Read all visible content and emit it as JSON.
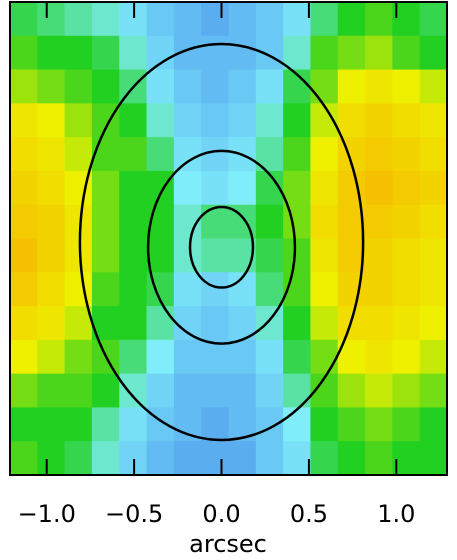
{
  "chart_data": {
    "type": "heatmap",
    "xlabel": "arcsec",
    "xlim": [
      -1.21,
      1.29
    ],
    "ylim": [
      -1.3,
      1.4
    ],
    "xticks": [
      {
        "value": -1.0,
        "label": "−1.0"
      },
      {
        "value": -0.5,
        "label": "−0.5"
      },
      {
        "value": 0.0,
        "label": "0.0"
      },
      {
        "value": 0.5,
        "label": "0.5"
      },
      {
        "value": 1.0,
        "label": "1.0"
      }
    ],
    "zlim": [
      0,
      1
    ],
    "colorscale": [
      "#5aaef0",
      "#80eefa",
      "#22d022",
      "#eef000",
      "#f5c000"
    ],
    "z": [
      [
        0.45,
        0.4,
        0.35,
        0.3,
        0.2,
        0.1,
        0.05,
        0.0,
        0.05,
        0.1,
        0.2,
        0.4,
        0.5,
        0.55,
        0.5,
        0.45
      ],
      [
        0.55,
        0.5,
        0.5,
        0.45,
        0.3,
        0.15,
        0.05,
        0.05,
        0.05,
        0.1,
        0.3,
        0.55,
        0.6,
        0.65,
        0.55,
        0.5
      ],
      [
        0.65,
        0.6,
        0.55,
        0.5,
        0.4,
        0.2,
        0.1,
        0.05,
        0.1,
        0.2,
        0.45,
        0.6,
        0.75,
        0.8,
        0.75,
        0.7
      ],
      [
        0.8,
        0.75,
        0.65,
        0.55,
        0.5,
        0.3,
        0.15,
        0.1,
        0.15,
        0.3,
        0.5,
        0.7,
        0.85,
        0.9,
        0.85,
        0.8
      ],
      [
        0.85,
        0.8,
        0.7,
        0.55,
        0.55,
        0.4,
        0.2,
        0.15,
        0.2,
        0.35,
        0.55,
        0.75,
        0.9,
        0.95,
        0.9,
        0.85
      ],
      [
        0.9,
        0.85,
        0.75,
        0.6,
        0.5,
        0.5,
        0.25,
        0.2,
        0.25,
        0.45,
        0.6,
        0.8,
        0.95,
        1.0,
        0.95,
        0.9
      ],
      [
        0.95,
        0.9,
        0.8,
        0.6,
        0.5,
        0.5,
        0.3,
        0.4,
        0.4,
        0.5,
        0.6,
        0.85,
        0.95,
        0.95,
        0.9,
        0.85
      ],
      [
        1.0,
        0.9,
        0.8,
        0.6,
        0.5,
        0.5,
        0.3,
        0.35,
        0.35,
        0.45,
        0.55,
        0.8,
        0.95,
        0.9,
        0.85,
        0.8
      ],
      [
        0.95,
        0.85,
        0.75,
        0.55,
        0.5,
        0.45,
        0.2,
        0.15,
        0.2,
        0.4,
        0.55,
        0.75,
        0.9,
        0.9,
        0.85,
        0.8
      ],
      [
        0.85,
        0.8,
        0.7,
        0.5,
        0.5,
        0.35,
        0.15,
        0.1,
        0.15,
        0.3,
        0.5,
        0.7,
        0.85,
        0.85,
        0.8,
        0.75
      ],
      [
        0.75,
        0.7,
        0.6,
        0.55,
        0.4,
        0.25,
        0.1,
        0.1,
        0.1,
        0.2,
        0.45,
        0.6,
        0.75,
        0.8,
        0.75,
        0.7
      ],
      [
        0.6,
        0.55,
        0.55,
        0.5,
        0.3,
        0.15,
        0.05,
        0.05,
        0.05,
        0.15,
        0.35,
        0.55,
        0.65,
        0.7,
        0.65,
        0.6
      ],
      [
        0.5,
        0.5,
        0.5,
        0.35,
        0.2,
        0.1,
        0.05,
        0.0,
        0.05,
        0.1,
        0.25,
        0.5,
        0.55,
        0.6,
        0.55,
        0.5
      ],
      [
        0.55,
        0.5,
        0.45,
        0.3,
        0.15,
        0.05,
        0.0,
        0.0,
        0.0,
        0.1,
        0.2,
        0.45,
        0.5,
        0.55,
        0.5,
        0.5
      ]
    ],
    "contours": [
      {
        "x": 0,
        "y": 0,
        "rx": 0.18,
        "ry": 0.23
      },
      {
        "x": 0,
        "y": 0,
        "rx": 0.42,
        "ry": 0.55
      },
      {
        "x": 0,
        "y": 0.03,
        "rx": 0.81,
        "ry": 1.13
      }
    ],
    "contour_color": "#000000"
  }
}
